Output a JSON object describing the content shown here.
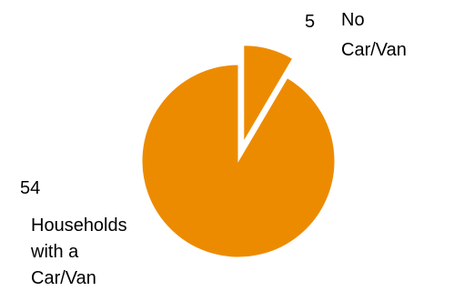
{
  "chart_data": {
    "type": "pie",
    "slices": [
      {
        "label_lines": [
          "Households",
          "with a",
          "Car/Van"
        ],
        "value": 54,
        "value_label": "54",
        "color": "#ED8B00"
      },
      {
        "label_lines": [
          "No",
          "Car/Van"
        ],
        "value": 5,
        "value_label": "5",
        "color": "#ED8B00",
        "exploded": true
      }
    ]
  }
}
